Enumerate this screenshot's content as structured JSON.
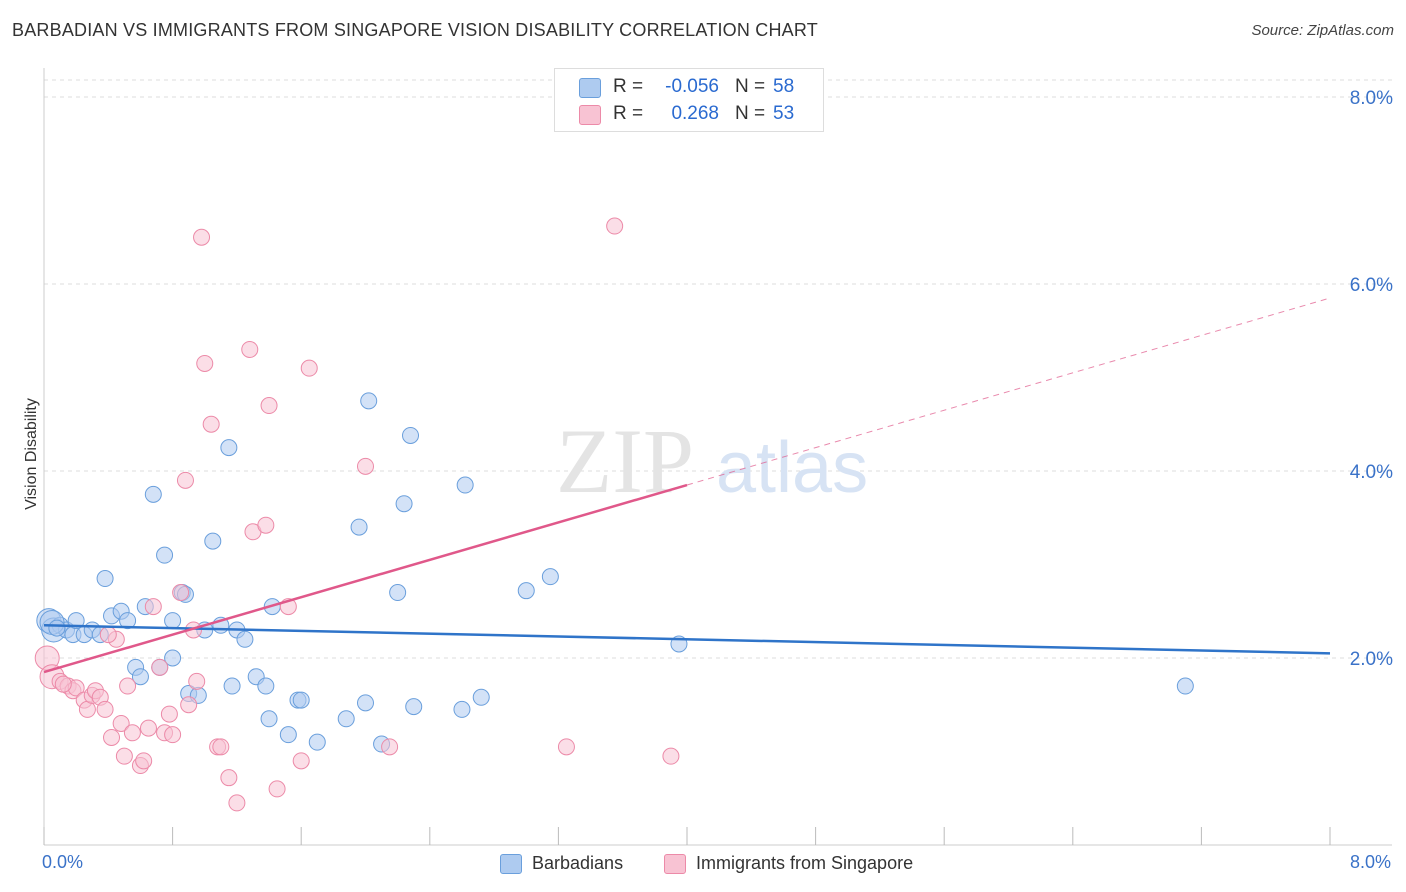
{
  "title": "BARBADIAN VS IMMIGRANTS FROM SINGAPORE VISION DISABILITY CORRELATION CHART",
  "source": "Source: ZipAtlas.com",
  "watermark": {
    "part1": "ZIP",
    "part2": "atlas"
  },
  "colors": {
    "blue_fill": "#aecbf0",
    "blue_stroke": "#6a9fdc",
    "blue_line": "#2f74c9",
    "pink_fill": "#f8c3d3",
    "pink_stroke": "#ec8aa8",
    "pink_line": "#e0588a",
    "tick_label": "#3a72c8",
    "grid": "#dddddd"
  },
  "legend": {
    "rows": [
      {
        "r_label": "R =",
        "r_value": "-0.056",
        "n_label": "N =",
        "n_value": "58",
        "series": "blue"
      },
      {
        "r_label": "R =",
        "r_value": "0.268",
        "n_label": "N =",
        "n_value": "53",
        "series": "pink"
      }
    ]
  },
  "bottom_legend": {
    "blue_label": "Barbadians",
    "pink_label": "Immigrants from Singapore"
  },
  "chart_data": {
    "type": "scatter",
    "title": "BARBADIAN VS IMMIGRANTS FROM SINGAPORE VISION DISABILITY CORRELATION CHART",
    "xlabel": "",
    "ylabel": "Vision Disability",
    "xlim": [
      0,
      8.4
    ],
    "ylim": [
      0,
      8.0
    ],
    "x_tick_labels": [
      "0.0%",
      "8.0%"
    ],
    "y_ticks": [
      2.0,
      4.0,
      6.0,
      8.0
    ],
    "y_tick_labels": [
      "2.0%",
      "4.0%",
      "6.0%",
      "8.0%"
    ],
    "grid": true,
    "series": [
      {
        "name": "Barbadians",
        "color": "blue",
        "trend": {
          "x": [
            0.0,
            8.0
          ],
          "y": [
            2.35,
            2.05
          ],
          "dashed_from": null
        },
        "points": [
          [
            0.03,
            2.4
          ],
          [
            0.06,
            2.3
          ],
          [
            0.1,
            2.35
          ],
          [
            0.14,
            2.3
          ],
          [
            0.18,
            2.25
          ],
          [
            0.2,
            2.4
          ],
          [
            0.25,
            2.25
          ],
          [
            0.3,
            2.3
          ],
          [
            0.35,
            2.25
          ],
          [
            0.38,
            2.85
          ],
          [
            0.42,
            2.45
          ],
          [
            0.48,
            2.5
          ],
          [
            0.52,
            2.4
          ],
          [
            0.57,
            1.9
          ],
          [
            0.6,
            1.8
          ],
          [
            0.63,
            2.55
          ],
          [
            0.68,
            3.75
          ],
          [
            0.72,
            1.9
          ],
          [
            0.75,
            3.1
          ],
          [
            0.8,
            2.4
          ],
          [
            0.8,
            2.0
          ],
          [
            0.86,
            2.7
          ],
          [
            0.88,
            2.68
          ],
          [
            0.9,
            1.62
          ],
          [
            0.96,
            1.6
          ],
          [
            1.0,
            2.3
          ],
          [
            1.05,
            3.25
          ],
          [
            1.1,
            2.35
          ],
          [
            1.15,
            4.25
          ],
          [
            1.17,
            1.7
          ],
          [
            1.2,
            2.3
          ],
          [
            1.25,
            2.2
          ],
          [
            1.32,
            1.8
          ],
          [
            1.38,
            1.7
          ],
          [
            1.4,
            1.35
          ],
          [
            1.42,
            2.55
          ],
          [
            1.52,
            1.18
          ],
          [
            1.58,
            1.55
          ],
          [
            1.6,
            1.55
          ],
          [
            1.7,
            1.1
          ],
          [
            1.88,
            1.35
          ],
          [
            1.96,
            3.4
          ],
          [
            2.0,
            1.52
          ],
          [
            2.02,
            4.75
          ],
          [
            2.1,
            1.08
          ],
          [
            2.2,
            2.7
          ],
          [
            2.24,
            3.65
          ],
          [
            2.28,
            4.38
          ],
          [
            2.3,
            1.48
          ],
          [
            2.6,
            1.45
          ],
          [
            2.62,
            3.85
          ],
          [
            2.72,
            1.58
          ],
          [
            3.0,
            2.72
          ],
          [
            3.15,
            2.87
          ],
          [
            3.95,
            2.15
          ],
          [
            7.1,
            1.7
          ],
          [
            0.05,
            2.38
          ],
          [
            0.08,
            2.32
          ]
        ]
      },
      {
        "name": "Immigrants from Singapore",
        "color": "pink",
        "trend": {
          "x": [
            0.0,
            4.0
          ],
          "y": [
            1.85,
            3.85
          ],
          "dashed_to_x": 8.0,
          "dashed_to_y": 5.85
        },
        "points": [
          [
            0.02,
            2.0
          ],
          [
            0.05,
            1.8
          ],
          [
            0.1,
            1.75
          ],
          [
            0.15,
            1.7
          ],
          [
            0.18,
            1.65
          ],
          [
            0.2,
            1.68
          ],
          [
            0.25,
            1.55
          ],
          [
            0.27,
            1.45
          ],
          [
            0.3,
            1.6
          ],
          [
            0.32,
            1.65
          ],
          [
            0.35,
            1.58
          ],
          [
            0.38,
            1.45
          ],
          [
            0.42,
            1.15
          ],
          [
            0.45,
            2.2
          ],
          [
            0.48,
            1.3
          ],
          [
            0.5,
            0.95
          ],
          [
            0.52,
            1.7
          ],
          [
            0.55,
            1.2
          ],
          [
            0.6,
            0.85
          ],
          [
            0.62,
            0.9
          ],
          [
            0.65,
            1.25
          ],
          [
            0.68,
            2.55
          ],
          [
            0.72,
            1.9
          ],
          [
            0.75,
            1.2
          ],
          [
            0.78,
            1.4
          ],
          [
            0.8,
            1.18
          ],
          [
            0.85,
            2.7
          ],
          [
            0.88,
            3.9
          ],
          [
            0.9,
            1.5
          ],
          [
            0.93,
            2.3
          ],
          [
            0.95,
            1.75
          ],
          [
            0.98,
            6.5
          ],
          [
            1.0,
            5.15
          ],
          [
            1.04,
            4.5
          ],
          [
            1.08,
            1.05
          ],
          [
            1.1,
            1.05
          ],
          [
            1.15,
            0.72
          ],
          [
            1.2,
            0.45
          ],
          [
            1.28,
            5.3
          ],
          [
            1.3,
            3.35
          ],
          [
            1.38,
            3.42
          ],
          [
            1.4,
            4.7
          ],
          [
            1.45,
            0.6
          ],
          [
            1.52,
            2.55
          ],
          [
            1.6,
            0.9
          ],
          [
            1.65,
            5.1
          ],
          [
            2.0,
            4.05
          ],
          [
            2.15,
            1.05
          ],
          [
            3.25,
            1.05
          ],
          [
            3.9,
            0.95
          ],
          [
            3.55,
            6.62
          ],
          [
            0.4,
            2.25
          ],
          [
            0.12,
            1.72
          ]
        ]
      }
    ]
  }
}
